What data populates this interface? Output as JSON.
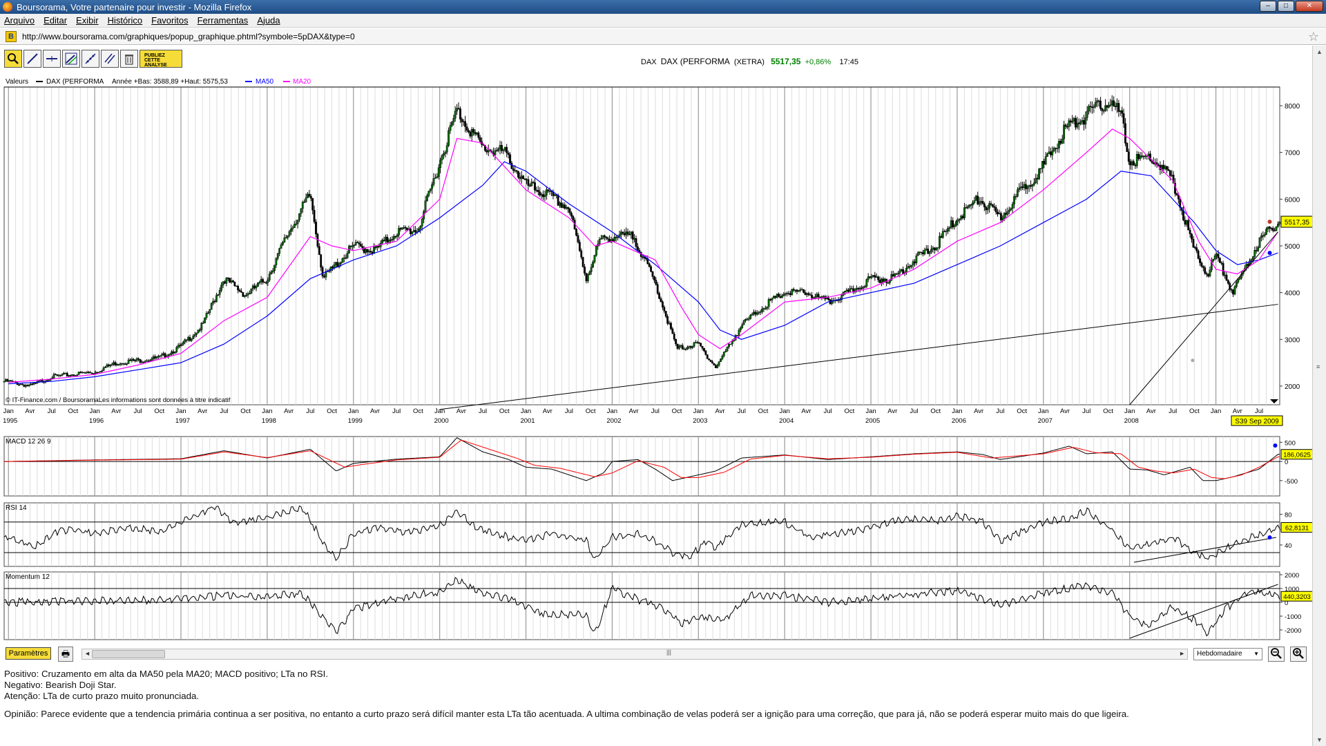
{
  "window": {
    "title": "Boursorama, Votre partenaire pour investir - Mozilla Firefox"
  },
  "menu": [
    "Arquivo",
    "Editar",
    "Exibir",
    "Histórico",
    "Favoritos",
    "Ferramentas",
    "Ajuda"
  ],
  "url": "http://www.boursorama.com/graphiques/popup_graphique.phtml?symbole=5pDAX&type=0",
  "toolbar": {
    "tools": [
      "zoom-icon",
      "trendline-icon",
      "horizontal-line-icon",
      "channel-icon",
      "fibonacci-icon",
      "parallel-lines-icon",
      "trash-icon"
    ],
    "publish_label": "PUBLIEZ CETTE ANALYSE"
  },
  "quote": {
    "code": "DAX",
    "name": "DAX (PERFORMA",
    "market": "(XETRA)",
    "price": "5517,35",
    "change": "+0,86%",
    "time": "17:45"
  },
  "legend": {
    "label": "Valeurs",
    "series_name": "DAX (PERFORMA",
    "range_text": "Année +Bas: 3588,89 +Haut: 5575,53",
    "ma50": "MA50",
    "ma20": "MA20"
  },
  "copyright": "© IT-Finance.com / BoursoramaLes informations sont données à titre indicatif",
  "colors": {
    "price": "#000000",
    "ma50": "#0000ff",
    "ma20": "#ff00ff",
    "macd_signal": "#ff0000",
    "badge": "#ffff00",
    "price_up": "#006400"
  },
  "chart_data": [
    {
      "type": "line",
      "name": "price-panel",
      "x_range": [
        1994.95,
        2009.74
      ],
      "ylim": [
        1600,
        8400
      ],
      "yticks": [
        2000,
        3000,
        4000,
        5000,
        6000,
        7000,
        8000
      ],
      "xticks_months": [
        "Jan",
        "Avr",
        "Jul",
        "Oct"
      ],
      "year_labels": [
        "1995",
        "1996",
        "1997",
        "1998",
        "1999",
        "2000",
        "2001",
        "2002",
        "2003",
        "2004",
        "2005",
        "2006",
        "2007",
        "2008"
      ],
      "series": [
        {
          "name": "DAX (PERFORMA",
          "x": [
            1995.0,
            1995.25,
            1995.5,
            1995.75,
            1996.0,
            1996.25,
            1996.5,
            1996.75,
            1997.0,
            1997.25,
            1997.5,
            1997.75,
            1998.0,
            1998.25,
            1998.5,
            1998.65,
            1998.75,
            1999.0,
            1999.25,
            1999.5,
            1999.75,
            2000.0,
            2000.2,
            2000.5,
            2000.75,
            2001.0,
            2001.25,
            2001.5,
            2001.7,
            2001.85,
            2002.0,
            2002.25,
            2002.5,
            2002.75,
            2003.0,
            2003.2,
            2003.5,
            2003.75,
            2004.0,
            2004.25,
            2004.5,
            2004.75,
            2005.0,
            2005.25,
            2005.5,
            2005.75,
            2006.0,
            2006.25,
            2006.5,
            2006.75,
            2007.0,
            2007.25,
            2007.5,
            2007.75,
            2007.9,
            2008.0,
            2008.25,
            2008.5,
            2008.75,
            2008.9,
            2009.0,
            2009.2,
            2009.5,
            2009.72
          ],
          "values": [
            2100,
            2000,
            2200,
            2250,
            2300,
            2500,
            2550,
            2600,
            2850,
            3300,
            4300,
            3950,
            4300,
            5300,
            6100,
            4300,
            4500,
            5000,
            4900,
            5300,
            5350,
            6800,
            7900,
            7100,
            7000,
            6300,
            6100,
            5800,
            4300,
            5100,
            5200,
            5200,
            4200,
            2800,
            2900,
            2400,
            3300,
            3700,
            4000,
            4000,
            3800,
            4000,
            4300,
            4300,
            4700,
            5000,
            5600,
            6000,
            5600,
            6200,
            6700,
            7500,
            7800,
            8100,
            7800,
            6800,
            6900,
            6400,
            4900,
            4400,
            4800,
            4000,
            5100,
            5517
          ]
        },
        {
          "name": "MA50",
          "x": [
            1995.0,
            1995.5,
            1996.0,
            1996.5,
            1997.0,
            1997.5,
            1998.0,
            1998.5,
            1999.0,
            1999.5,
            2000.0,
            2000.5,
            2000.75,
            2001.0,
            2001.5,
            2002.0,
            2002.5,
            2003.0,
            2003.25,
            2003.5,
            2004.0,
            2004.5,
            2005.0,
            2005.5,
            2006.0,
            2006.5,
            2007.0,
            2007.5,
            2007.9,
            2008.25,
            2008.5,
            2008.75,
            2009.0,
            2009.25,
            2009.5,
            2009.72
          ],
          "values": [
            2050,
            2100,
            2200,
            2350,
            2500,
            2900,
            3500,
            4300,
            4700,
            5000,
            5600,
            6300,
            6800,
            6600,
            5900,
            5300,
            4600,
            3800,
            3200,
            3000,
            3300,
            3800,
            4000,
            4200,
            4600,
            5000,
            5500,
            6000,
            6600,
            6500,
            6000,
            5500,
            4900,
            4600,
            4700,
            4850
          ]
        },
        {
          "name": "MA20",
          "x": [
            1995.0,
            1995.5,
            1996.0,
            1996.5,
            1997.0,
            1997.5,
            1998.0,
            1998.5,
            1998.75,
            1999.0,
            1999.5,
            2000.0,
            2000.2,
            2000.5,
            2001.0,
            2001.5,
            2001.8,
            2002.0,
            2002.5,
            2002.8,
            2003.0,
            2003.25,
            2003.5,
            2004.0,
            2004.5,
            2005.0,
            2005.5,
            2006.0,
            2006.5,
            2007.0,
            2007.5,
            2007.8,
            2008.0,
            2008.5,
            2008.8,
            2009.0,
            2009.25,
            2009.5,
            2009.72
          ],
          "values": [
            2080,
            2150,
            2250,
            2450,
            2700,
            3400,
            3900,
            5200,
            5000,
            4900,
            5100,
            6000,
            7300,
            7200,
            6200,
            5600,
            5000,
            5100,
            4700,
            3700,
            3100,
            2800,
            3100,
            3800,
            3900,
            4100,
            4500,
            5100,
            5500,
            6200,
            7000,
            7500,
            7300,
            6400,
            5100,
            4500,
            4400,
            4700,
            5300
          ]
        }
      ],
      "annotations": {
        "trendline_long": "from 2000 at 1500 through 2009.72 at 3750",
        "trendline_short": "from 2008.0 at 1600 through 2009.72 at 5300",
        "last_price_label": "5517,35",
        "date_label": "S39 Sep 2009"
      }
    },
    {
      "type": "line",
      "name": "MACD 12 26 9",
      "ylim": [
        -900,
        650
      ],
      "yticks": [
        500,
        0,
        -500
      ],
      "hline": 0,
      "series": [
        {
          "name": "MACD 12 26 9",
          "x": [
            1995.0,
            1996.0,
            1997.0,
            1997.5,
            1998.0,
            1998.5,
            1998.8,
            1999.0,
            1999.5,
            2000.0,
            2000.2,
            2000.5,
            2000.8,
            2001.0,
            2001.3,
            2001.7,
            2001.9,
            2002.0,
            2002.3,
            2002.5,
            2002.7,
            2002.9,
            2003.2,
            2003.5,
            2004.0,
            2004.5,
            2005.0,
            2005.5,
            2006.0,
            2006.3,
            2006.5,
            2007.0,
            2007.3,
            2007.5,
            2007.8,
            2008.0,
            2008.2,
            2008.4,
            2008.7,
            2008.85,
            2009.0,
            2009.2,
            2009.5,
            2009.72
          ],
          "values": [
            0,
            40,
            70,
            280,
            90,
            320,
            -250,
            -50,
            60,
            120,
            620,
            250,
            50,
            -150,
            -200,
            -500,
            -300,
            0,
            50,
            -200,
            -500,
            -400,
            -250,
            90,
            170,
            50,
            120,
            200,
            250,
            180,
            50,
            220,
            400,
            200,
            250,
            -200,
            -220,
            -350,
            -150,
            -500,
            -500,
            -400,
            -200,
            186
          ]
        },
        {
          "name": "signal",
          "x": [
            1995.0,
            1996.0,
            1997.0,
            1997.5,
            1998.0,
            1998.5,
            1998.9,
            1999.1,
            1999.5,
            2000.0,
            2000.25,
            2000.6,
            2000.9,
            2001.1,
            2001.4,
            2001.8,
            2002.0,
            2002.3,
            2002.6,
            2002.8,
            2003.0,
            2003.3,
            2003.6,
            2004.0,
            2004.5,
            2005.0,
            2005.5,
            2006.0,
            2006.4,
            2007.0,
            2007.35,
            2007.6,
            2007.9,
            2008.1,
            2008.3,
            2008.5,
            2008.75,
            2008.95,
            2009.1,
            2009.3,
            2009.5,
            2009.72
          ],
          "values": [
            0,
            35,
            60,
            250,
            100,
            280,
            -150,
            -80,
            40,
            110,
            560,
            300,
            80,
            -100,
            -180,
            -400,
            -300,
            20,
            -150,
            -420,
            -420,
            -280,
            60,
            160,
            70,
            110,
            190,
            240,
            90,
            200,
            370,
            230,
            200,
            -150,
            -250,
            -300,
            -200,
            -420,
            -450,
            -350,
            -150,
            120
          ]
        }
      ],
      "last_value_label": "186,0625"
    },
    {
      "type": "line",
      "name": "RSI 14",
      "ylim": [
        12,
        95
      ],
      "yticks": [
        80,
        60,
        40
      ],
      "hlines": [
        70,
        30
      ],
      "series": [
        {
          "name": "RSI 14",
          "x": [
            1995.0,
            1995.3,
            1995.6,
            1996.0,
            1996.4,
            1996.8,
            1997.0,
            1997.4,
            1997.6,
            1998.0,
            1998.4,
            1998.7,
            1998.8,
            1999.0,
            1999.3,
            1999.6,
            2000.0,
            2000.2,
            2000.4,
            2000.8,
            2001.0,
            2001.3,
            2001.7,
            2001.8,
            2002.0,
            2002.3,
            2002.5,
            2002.7,
            2002.9,
            2003.1,
            2003.2,
            2003.5,
            2004.0,
            2004.3,
            2004.6,
            2005.0,
            2005.4,
            2005.8,
            2006.0,
            2006.3,
            2006.5,
            2006.8,
            2007.0,
            2007.3,
            2007.5,
            2007.8,
            2008.0,
            2008.2,
            2008.5,
            2008.75,
            2008.9,
            2009.1,
            2009.4,
            2009.72
          ],
          "values": [
            50,
            38,
            60,
            55,
            62,
            58,
            70,
            90,
            68,
            75,
            90,
            35,
            22,
            55,
            62,
            55,
            65,
            85,
            65,
            50,
            45,
            55,
            45,
            20,
            50,
            55,
            45,
            30,
            25,
            45,
            35,
            68,
            70,
            50,
            55,
            62,
            75,
            72,
            78,
            70,
            45,
            60,
            70,
            75,
            85,
            60,
            35,
            40,
            50,
            30,
            22,
            35,
            50,
            63
          ]
        }
      ],
      "last_value_label": "62,8131"
    },
    {
      "type": "line",
      "name": "Momentum 12",
      "ylim": [
        -2700,
        2200
      ],
      "yticks": [
        2000,
        1000,
        0,
        -1000,
        -2000
      ],
      "hlines": [
        1000,
        0
      ],
      "series": [
        {
          "name": "Momentum 12",
          "x": [
            1995.0,
            1996.0,
            1997.0,
            1997.5,
            1998.0,
            1998.4,
            1998.7,
            1998.8,
            1999.0,
            1999.5,
            2000.0,
            2000.2,
            2000.4,
            2000.8,
            2001.2,
            2001.7,
            2001.8,
            2002.0,
            2002.3,
            2002.6,
            2002.8,
            2003.0,
            2003.3,
            2003.6,
            2004.0,
            2004.5,
            2005.0,
            2005.5,
            2006.0,
            2006.5,
            2007.0,
            2007.5,
            2007.8,
            2008.0,
            2008.2,
            2008.5,
            2008.8,
            2008.9,
            2009.1,
            2009.4,
            2009.72
          ],
          "values": [
            0,
            100,
            200,
            500,
            400,
            700,
            -1500,
            -2200,
            -500,
            300,
            800,
            1700,
            900,
            200,
            -800,
            -900,
            -2300,
            1000,
            200,
            -500,
            -1600,
            -1000,
            -1200,
            500,
            500,
            0,
            300,
            600,
            800,
            -200,
            700,
            1200,
            600,
            -1000,
            -1800,
            -300,
            -1500,
            -2300,
            -500,
            800,
            440
          ]
        }
      ],
      "last_value_label": "440,3203"
    }
  ],
  "footer": {
    "params_label": "Paramètres",
    "period": "Hebdomadaire"
  },
  "notes": [
    "Positivo: Cruzamento em alta da MA50 pela MA20;  MACD positivo; LTa no RSI.",
    "Negativo: Bearish Doji Star.",
    "Atenção: LTa de curto prazo muito pronunciada.",
    "Opinião: Parece evidente que a tendencia primária continua a ser positiva, no entanto a curto prazo será difícil manter esta LTa tão acentuada. A ultima combinação de velas poderá ser a ignição para uma correção, que para já, não se poderá esperar muito mais do que ligeira."
  ],
  "panel_titles": {
    "macd": "MACD 12 26 9",
    "rsi": "RSI 14",
    "momentum": "Momentum 12"
  }
}
